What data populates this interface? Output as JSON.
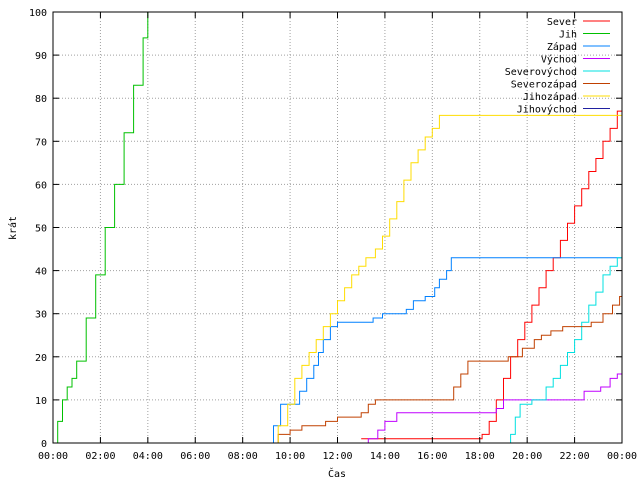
{
  "chart_data": {
    "type": "line",
    "xlabel": "Čas",
    "ylabel": "krát",
    "xlim": [
      0,
      24
    ],
    "ylim": [
      0,
      100
    ],
    "x_ticks": [
      0,
      2,
      4,
      6,
      8,
      10,
      12,
      14,
      16,
      18,
      20,
      22,
      24
    ],
    "x_tick_labels": [
      "00:00",
      "02:00",
      "04:00",
      "06:00",
      "08:00",
      "10:00",
      "12:00",
      "14:00",
      "16:00",
      "18:00",
      "20:00",
      "22:00",
      "00:00"
    ],
    "y_ticks": [
      0,
      10,
      20,
      30,
      40,
      50,
      60,
      70,
      80,
      90,
      100
    ],
    "y_tick_labels": [
      "0",
      "10",
      "20",
      "30",
      "40",
      "50",
      "60",
      "70",
      "80",
      "90",
      "100"
    ],
    "grid": true,
    "legend_position": "top-right",
    "series": [
      {
        "name": "Sever",
        "color": "#ff0000",
        "x": [
          13.0,
          18.1,
          18.4,
          18.7,
          19.0,
          19.3,
          19.6,
          19.9,
          20.2,
          20.5,
          20.8,
          21.1,
          21.4,
          21.7,
          22.0,
          22.3,
          22.6,
          22.9,
          23.2,
          23.5,
          23.8,
          24.0
        ],
        "y": [
          1,
          2,
          5,
          10,
          15,
          20,
          24,
          28,
          32,
          36,
          40,
          43,
          47,
          51,
          55,
          59,
          63,
          66,
          70,
          73,
          77,
          78
        ]
      },
      {
        "name": "Jih",
        "color": "#00c000",
        "x": [
          0.0,
          0.2,
          0.4,
          0.6,
          0.8,
          1.0,
          1.4,
          1.8,
          2.2,
          2.6,
          3.0,
          3.4,
          3.8,
          4.0,
          24.0
        ],
        "y": [
          0,
          5,
          10,
          13,
          15,
          19,
          29,
          39,
          50,
          60,
          72,
          83,
          94,
          100,
          100
        ]
      },
      {
        "name": "Západ",
        "color": "#0080ff",
        "x": [
          9.1,
          9.3,
          9.6,
          10.0,
          10.4,
          10.7,
          11.0,
          11.2,
          11.4,
          11.7,
          12.0,
          12.4,
          12.8,
          13.2,
          13.5,
          13.9,
          14.4,
          14.9,
          15.2,
          15.7,
          16.1,
          16.3,
          16.6,
          16.8,
          17.0,
          24.0
        ],
        "y": [
          0,
          4,
          9,
          9,
          12,
          15,
          18,
          21,
          24,
          27,
          28,
          28,
          28,
          28,
          29,
          30,
          30,
          31,
          33,
          34,
          36,
          38,
          40,
          43,
          43,
          43
        ]
      },
      {
        "name": "Východ",
        "color": "#c000ff",
        "x": [
          12.8,
          13.3,
          13.7,
          14.0,
          14.5,
          15.1,
          15.7,
          16.3,
          16.9,
          17.4,
          18.1,
          18.7,
          19.0,
          19.3,
          20.0,
          20.6,
          21.2,
          21.8,
          22.4,
          23.1,
          23.5,
          23.8,
          24.0
        ],
        "y": [
          0,
          1,
          3,
          5,
          7,
          7,
          7,
          7,
          7,
          7,
          7,
          8,
          10,
          10,
          10,
          10,
          10,
          10,
          12,
          13,
          15,
          16,
          16
        ]
      },
      {
        "name": "Severovýchod",
        "color": "#00e0e0",
        "x": [
          18.9,
          19.3,
          19.5,
          19.7,
          19.9,
          20.2,
          20.5,
          20.8,
          21.1,
          21.4,
          21.7,
          22.0,
          22.3,
          22.6,
          22.9,
          23.2,
          23.5,
          23.8,
          24.0
        ],
        "y": [
          0,
          2,
          6,
          9,
          9,
          10,
          10,
          13,
          15,
          18,
          21,
          24,
          28,
          32,
          35,
          39,
          41,
          43,
          46
        ]
      },
      {
        "name": "Severozápad",
        "color": "#c04000",
        "x": [
          9.0,
          9.5,
          9.8,
          10.0,
          10.5,
          11.0,
          11.5,
          12.0,
          12.5,
          13.0,
          13.3,
          13.6,
          14.2,
          15.0,
          15.8,
          16.5,
          16.9,
          17.2,
          17.5,
          18.0,
          18.6,
          19.2,
          19.8,
          20.3,
          20.6,
          21.0,
          21.5,
          22.1,
          22.7,
          23.2,
          23.6,
          23.9,
          24.0
        ],
        "y": [
          0,
          2,
          2,
          3,
          4,
          4,
          5,
          6,
          6,
          7,
          9,
          10,
          10,
          10,
          10,
          10,
          13,
          16,
          19,
          19,
          19,
          20,
          22,
          24,
          25,
          26,
          27,
          27,
          28,
          30,
          32,
          34,
          34
        ]
      },
      {
        "name": "Jihozápad",
        "color": "#ffdd00",
        "x": [
          9.2,
          9.5,
          9.9,
          10.2,
          10.5,
          10.8,
          11.1,
          11.4,
          11.7,
          12.0,
          12.3,
          12.6,
          12.9,
          13.2,
          13.6,
          13.9,
          14.2,
          14.5,
          14.8,
          15.1,
          15.4,
          15.7,
          16.0,
          16.3,
          16.6,
          24.0
        ],
        "y": [
          0,
          4,
          9,
          15,
          18,
          21,
          24,
          27,
          30,
          33,
          36,
          39,
          41,
          43,
          45,
          48,
          52,
          56,
          61,
          65,
          68,
          71,
          73,
          76,
          76,
          76
        ]
      },
      {
        "name": "Jihovýchod",
        "color": "#2020a0",
        "x": [],
        "y": []
      }
    ]
  }
}
